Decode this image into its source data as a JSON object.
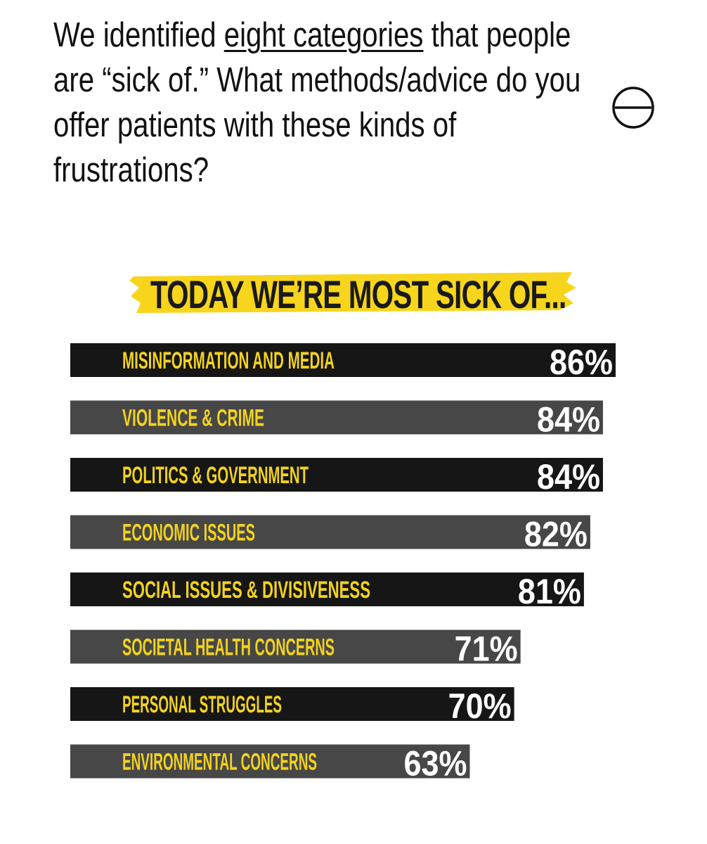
{
  "question": {
    "before_link": "We identified ",
    "link": "eight categories",
    "after_link": " that people are “sick of.” What methods/advice do you offer patients with these kinds of frustrations?"
  },
  "controls": {
    "collapse_icon": "minus-circle-icon"
  },
  "colors": {
    "bar_dark": "#161616",
    "bar_light": "#474747",
    "label": "#f2d21f",
    "highlight": "#f7d51d",
    "value": "#ffffff"
  },
  "chart_data": {
    "type": "bar",
    "orientation": "horizontal",
    "title": "TODAY WE’RE MOST SICK OF...",
    "categories": [
      "MISINFORMATION AND MEDIA",
      "VIOLENCE & CRIME",
      "POLITICS & GOVERNMENT",
      "ECONOMIC ISSUES",
      "SOCIAL ISSUES & DIVISIVENESS",
      "SOCIETAL HEALTH CONCERNS",
      "PERSONAL STRUGGLES",
      "ENVIRONMENTAL CONCERNS"
    ],
    "values": [
      86,
      84,
      84,
      82,
      81,
      71,
      70,
      63
    ],
    "value_labels": [
      "86%",
      "84%",
      "84%",
      "82%",
      "81%",
      "71%",
      "70%",
      "63%"
    ],
    "unit": "%",
    "xlim": [
      0,
      100
    ],
    "grid": false,
    "legend": "none"
  }
}
